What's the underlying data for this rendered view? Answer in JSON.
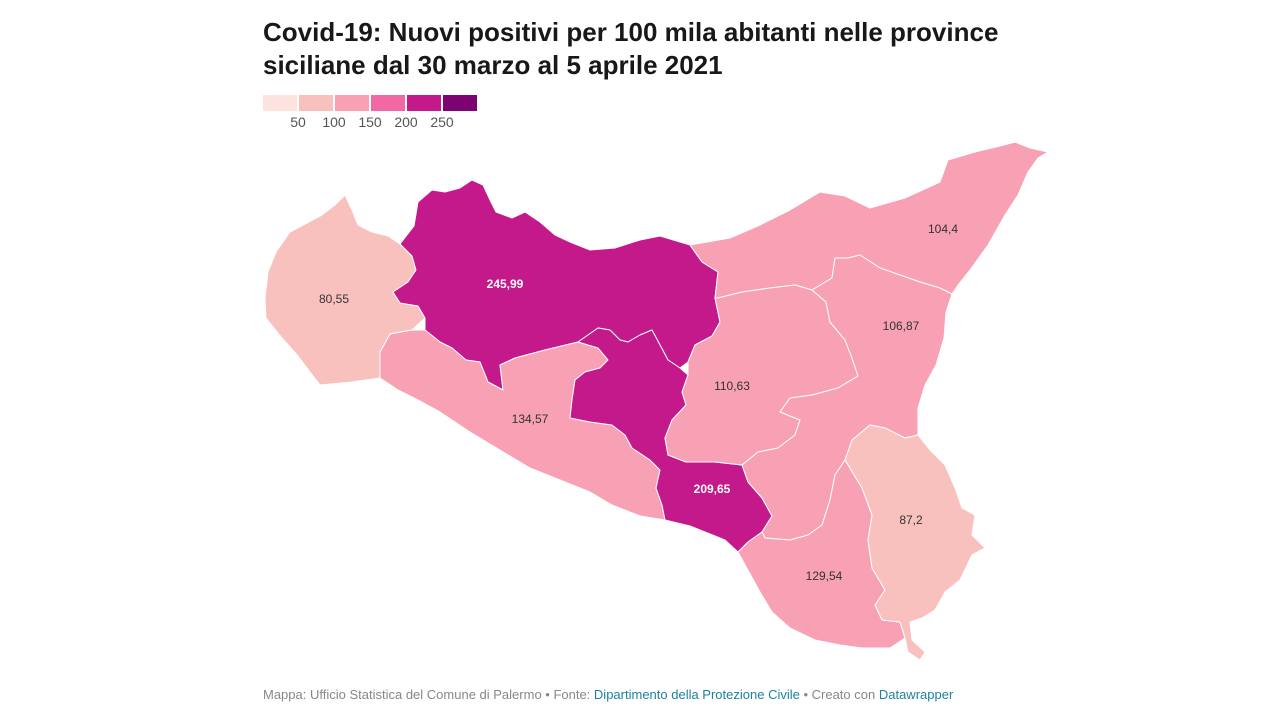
{
  "title": "Covid-19: Nuovi positivi per 100 mila abitanti nelle province siciliane dal 30 marzo al 5 aprile  2021",
  "legend": {
    "colors": [
      "#fde3dd",
      "#f9c1be",
      "#f8a0b4",
      "#f168a4",
      "#c4198a",
      "#7d0272"
    ],
    "ticks": [
      "50",
      "100",
      "150",
      "200",
      "250"
    ]
  },
  "provinces": [
    {
      "id": "trapani",
      "value": "80,55",
      "fill": "#f9c1be"
    },
    {
      "id": "palermo",
      "value": "245,99",
      "fill": "#c4198a"
    },
    {
      "id": "messina",
      "value": "104,4",
      "fill": "#f8a0b4"
    },
    {
      "id": "agrigento",
      "value": "134,57",
      "fill": "#f8a0b4"
    },
    {
      "id": "caltanissetta",
      "value": "209,65",
      "fill": "#c4198a"
    },
    {
      "id": "enna",
      "value": "110,63",
      "fill": "#f8a0b4"
    },
    {
      "id": "catania",
      "value": "106,87",
      "fill": "#f8a0b4"
    },
    {
      "id": "ragusa",
      "value": "129,54",
      "fill": "#f8a0b4"
    },
    {
      "id": "siracusa",
      "value": "87,2",
      "fill": "#f9c1be"
    }
  ],
  "footer": {
    "prefix": "Mappa: Ufficio Statistica del Comune di Palermo • Fonte: ",
    "source": "Dipartimento della Protezione Civile",
    "middle": " • Creato con ",
    "tool": "Datawrapper"
  }
}
